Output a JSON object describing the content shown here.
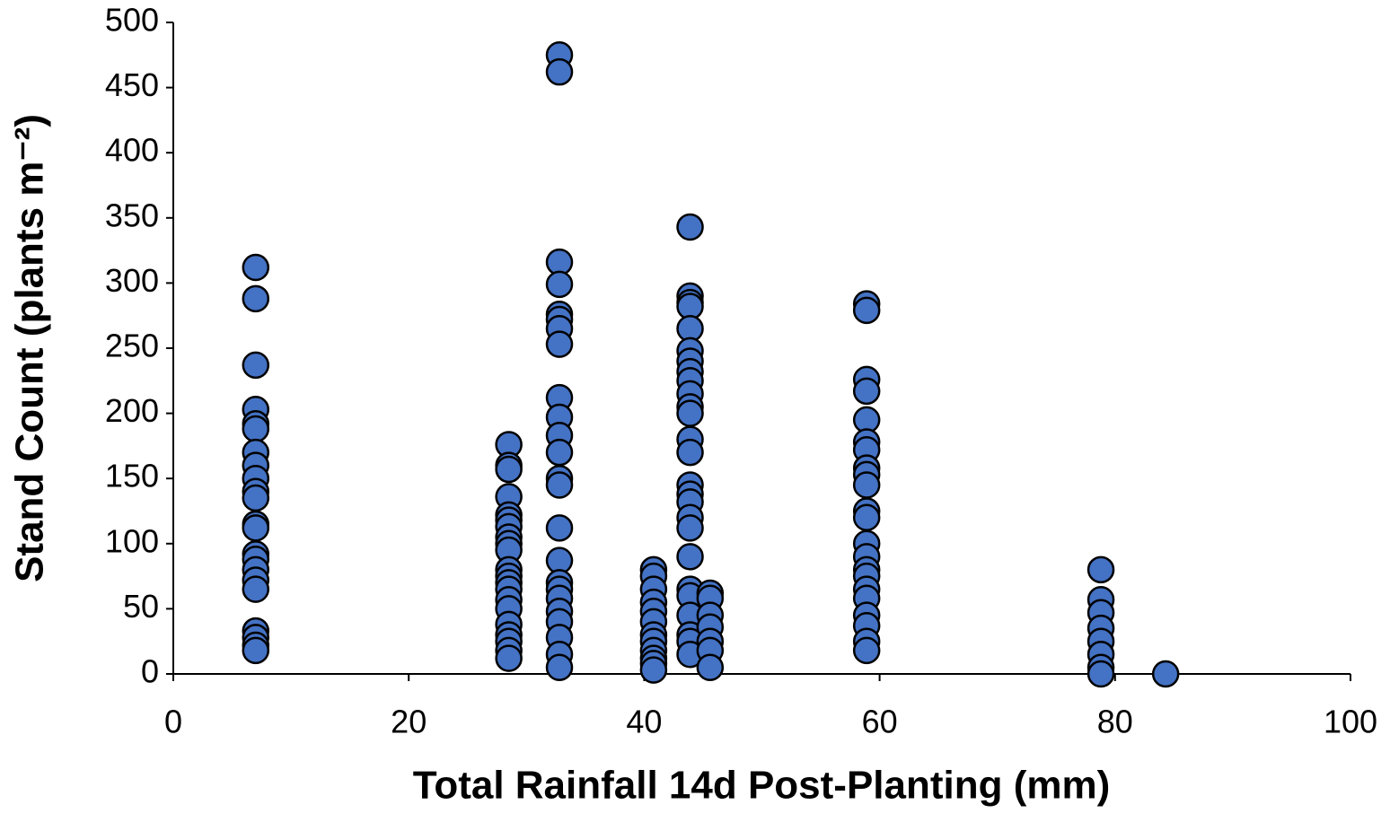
{
  "chart_data": {
    "type": "scatter",
    "x_label": "Total Rainfall 14d Post-Planting (mm)",
    "y_label": "Stand Count (plants m⁻²)",
    "color": "#4472c4",
    "x": [
      7,
      7,
      7,
      7,
      7,
      7,
      7,
      7,
      7,
      7,
      7,
      7,
      7,
      7,
      7,
      7,
      7,
      7,
      7,
      7,
      7,
      7,
      28.5,
      28.5,
      28.5,
      28.5,
      28.5,
      28.5,
      28.5,
      28.5,
      28.5,
      28.5,
      28.5,
      28.5,
      28.5,
      28.5,
      28.5,
      28.5,
      28.5,
      28.5,
      28.5,
      28.5,
      28.5,
      32.8,
      32.8,
      32.8,
      32.8,
      32.8,
      32.8,
      32.8,
      32.8,
      32.8,
      32.8,
      32.8,
      32.8,
      32.8,
      32.8,
      32.8,
      32.8,
      32.8,
      32.8,
      32.8,
      32.8,
      32.8,
      32.8,
      32.8,
      32.8,
      40.8,
      40.8,
      40.8,
      40.8,
      40.8,
      40.8,
      40.8,
      40.8,
      40.8,
      40.8,
      40.8,
      40.8,
      43.9,
      43.9,
      43.9,
      43.9,
      43.9,
      43.9,
      43.9,
      43.9,
      43.9,
      43.9,
      43.9,
      43.9,
      43.9,
      43.9,
      43.9,
      43.9,
      43.9,
      43.9,
      43.9,
      43.9,
      43.9,
      43.9,
      43.9,
      43.9,
      43.9,
      43.9,
      45.6,
      45.6,
      45.6,
      45.6,
      45.6,
      45.6,
      45.6,
      58.9,
      58.9,
      58.9,
      58.9,
      58.9,
      58.9,
      58.9,
      58.9,
      58.9,
      58.9,
      58.9,
      58.9,
      58.9,
      58.9,
      58.9,
      58.9,
      58.9,
      58.9,
      58.9,
      58.9,
      58.9,
      58.9,
      78.8,
      78.8,
      78.8,
      78.8,
      78.8,
      78.8,
      78.8,
      78.8,
      84.3
    ],
    "values": [
      312,
      288,
      237,
      203,
      192,
      188,
      170,
      160,
      150,
      140,
      135,
      115,
      112,
      92,
      88,
      80,
      72,
      65,
      33,
      28,
      22,
      18,
      176,
      160,
      157,
      136,
      122,
      118,
      113,
      105,
      100,
      95,
      80,
      75,
      70,
      65,
      57,
      50,
      38,
      30,
      25,
      18,
      12,
      475,
      462,
      316,
      299,
      276,
      272,
      265,
      253,
      212,
      197,
      183,
      170,
      150,
      145,
      112,
      87,
      70,
      65,
      58,
      48,
      40,
      28,
      15,
      5,
      80,
      75,
      65,
      55,
      48,
      40,
      30,
      25,
      18,
      12,
      8,
      3,
      343,
      290,
      285,
      282,
      265,
      248,
      240,
      232,
      225,
      215,
      205,
      200,
      180,
      170,
      145,
      138,
      132,
      120,
      112,
      90,
      65,
      60,
      45,
      30,
      25,
      15,
      62,
      58,
      45,
      36,
      25,
      18,
      5,
      284,
      279,
      226,
      217,
      195,
      178,
      172,
      158,
      153,
      145,
      125,
      120,
      100,
      90,
      80,
      75,
      65,
      58,
      45,
      37,
      25,
      18,
      80,
      57,
      47,
      35,
      25,
      15,
      5,
      0,
      0
    ],
    "xlim": [
      0,
      100
    ],
    "xticks": [
      0,
      20,
      40,
      60,
      80,
      100
    ],
    "ylim": [
      0,
      500
    ],
    "yticks": [
      0,
      50,
      100,
      150,
      200,
      250,
      300,
      350,
      400,
      450,
      500
    ]
  }
}
